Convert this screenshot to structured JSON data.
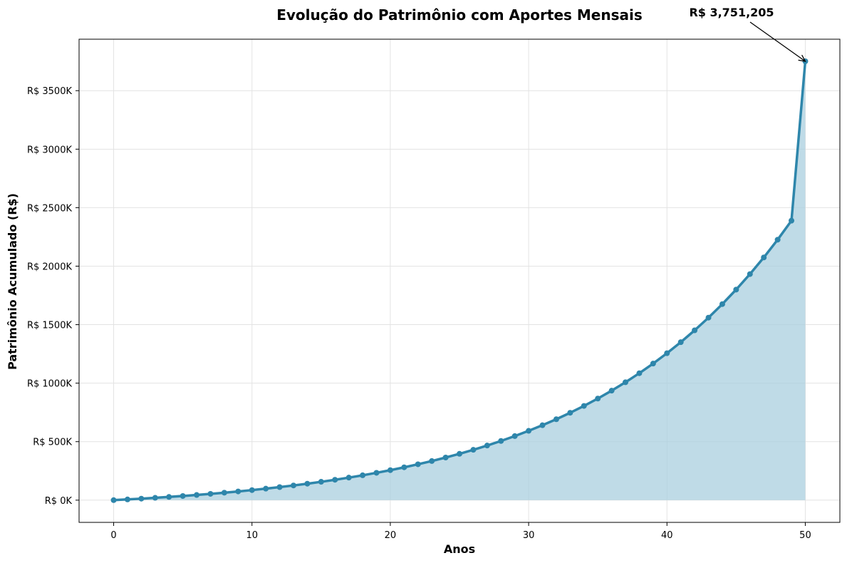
{
  "chart_data": {
    "type": "area",
    "title": "Evolução do Patrimônio com Aportes Mensais",
    "xlabel": "Anos",
    "ylabel": "Patrimônio Acumulado (R$)",
    "xlim": [
      -2.5,
      52.5
    ],
    "ylim": [
      -190000,
      3940000
    ],
    "x_ticks": [
      0,
      10,
      20,
      30,
      40,
      50
    ],
    "x_tick_labels": [
      "0",
      "10",
      "20",
      "30",
      "40",
      "50"
    ],
    "y_ticks": [
      0,
      500000,
      1000000,
      1500000,
      2000000,
      2500000,
      3000000,
      3500000
    ],
    "y_tick_labels": [
      "R$ 0K",
      "R$ 500K",
      "R$ 1000K",
      "R$ 1500K",
      "R$ 2000K",
      "R$ 2500K",
      "R$ 3000K",
      "R$ 3500K"
    ],
    "grid": true,
    "series": [
      {
        "line_color": "#2e86ab",
        "fill_color": "#a9cfdf",
        "x": [
          0,
          1,
          2,
          3,
          4,
          5,
          6,
          7,
          8,
          9,
          10,
          11,
          12,
          13,
          14,
          15,
          16,
          17,
          18,
          19,
          20,
          21,
          22,
          23,
          24,
          25,
          26,
          27,
          28,
          29,
          30,
          31,
          32,
          33,
          34,
          35,
          36,
          37,
          38,
          39,
          40,
          41,
          42,
          43,
          44,
          45,
          46,
          47,
          48,
          49,
          50
        ],
        "y": [
          0,
          6200,
          12800,
          19900,
          27500,
          35700,
          44400,
          53800,
          63800,
          74500,
          86000,
          98300,
          111500,
          125600,
          140700,
          156900,
          174200,
          192700,
          212500,
          233700,
          256400,
          280700,
          306700,
          334500,
          364300,
          396200,
          430300,
          466900,
          505900,
          547700,
          592500,
          640400,
          691800,
          746700,
          805500,
          868400,
          935800,
          1007800,
          1085000,
          1167500,
          1255900,
          1350400,
          1451600,
          1559900,
          1675700,
          1799700,
          1932400,
          2074400,
          2226300,
          2388900,
          3751205
        ]
      }
    ],
    "annotation": {
      "text": "R$ 3,751,205",
      "x": 50,
      "y": 3751205
    }
  }
}
